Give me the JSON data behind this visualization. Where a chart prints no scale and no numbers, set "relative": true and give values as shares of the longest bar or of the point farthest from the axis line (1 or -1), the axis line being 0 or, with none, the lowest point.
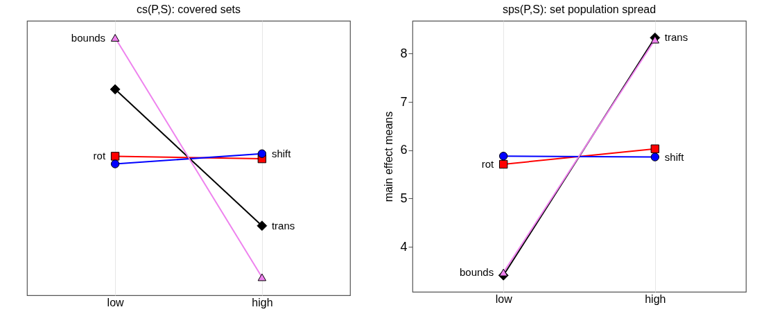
{
  "chart_data": [
    {
      "type": "line",
      "title": "cs(P,S): covered sets",
      "categories": [
        "low",
        "high"
      ],
      "grid": "x",
      "relative": true,
      "series": [
        {
          "name": "rot",
          "color": "#ff0000",
          "marker": "square",
          "values": [
            0.54,
            0.53
          ]
        },
        {
          "name": "shift",
          "color": "#0000ff",
          "marker": "circle",
          "values": [
            0.51,
            0.55
          ]
        },
        {
          "name": "trans",
          "color": "#000000",
          "marker": "diamond",
          "values": [
            0.8,
            0.27
          ]
        },
        {
          "name": "bounds",
          "color": "#ee82ee",
          "marker": "triangle",
          "values": [
            1,
            0.07
          ]
        }
      ]
    },
    {
      "type": "line",
      "title": "sps(P,S): set population spread",
      "ylabel": "main effect means",
      "categories": [
        "low",
        "high"
      ],
      "grid": "x",
      "ylim": [
        3.07,
        8.68
      ],
      "yticks": [
        4,
        5,
        6,
        7,
        8
      ],
      "series": [
        {
          "name": "rot",
          "color": "#ff0000",
          "marker": "square",
          "values": [
            5.71,
            6.03
          ]
        },
        {
          "name": "shift",
          "color": "#0000ff",
          "marker": "circle",
          "values": [
            5.88,
            5.86
          ]
        },
        {
          "name": "trans",
          "color": "#000000",
          "marker": "diamond",
          "values": [
            3.41,
            8.33
          ]
        },
        {
          "name": "bounds",
          "color": "#ee82ee",
          "marker": "triangle",
          "values": [
            3.47,
            8.29
          ]
        }
      ]
    }
  ]
}
